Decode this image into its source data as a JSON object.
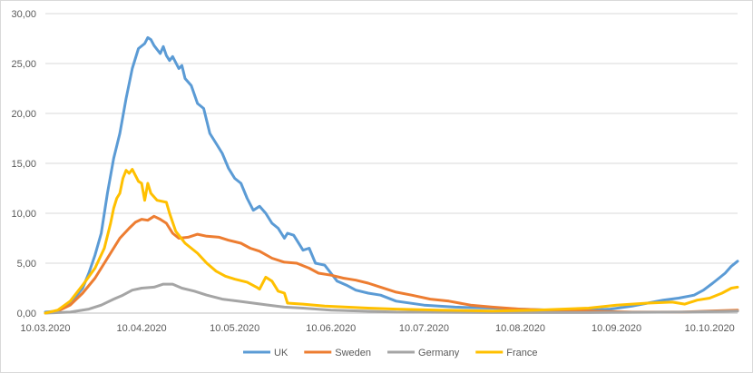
{
  "chart_data": {
    "type": "line",
    "title": "",
    "xlabel": "",
    "ylabel": "",
    "ylim": [
      0,
      30
    ],
    "yticks": [
      "0,00",
      "5,00",
      "10,00",
      "15,00",
      "20,00",
      "25,00",
      "30,00"
    ],
    "xticks": [
      "10.03.2020",
      "10.04.2020",
      "10.05.2020",
      "10.06.2020",
      "10.07.2020",
      "10.08.2020",
      "10.09.2020",
      "10.10.2020"
    ],
    "x_range": [
      "2020-03-10",
      "2020-10-19"
    ],
    "grid": "horizontal",
    "legend_position": "bottom",
    "series": [
      {
        "name": "UK",
        "color": "#5b9bd5",
        "points": [
          [
            "2020-03-10",
            0.1
          ],
          [
            "2020-03-14",
            0.2
          ],
          [
            "2020-03-18",
            1.0
          ],
          [
            "2020-03-22",
            2.5
          ],
          [
            "2020-03-24",
            4.0
          ],
          [
            "2020-03-26",
            5.8
          ],
          [
            "2020-03-28",
            8.0
          ],
          [
            "2020-03-30",
            12.0
          ],
          [
            "2020-04-01",
            15.5
          ],
          [
            "2020-04-03",
            18.0
          ],
          [
            "2020-04-05",
            21.5
          ],
          [
            "2020-04-07",
            24.5
          ],
          [
            "2020-04-09",
            26.5
          ],
          [
            "2020-04-11",
            27.0
          ],
          [
            "2020-04-12",
            27.6
          ],
          [
            "2020-04-13",
            27.4
          ],
          [
            "2020-04-14",
            26.8
          ],
          [
            "2020-04-16",
            26.0
          ],
          [
            "2020-04-17",
            26.7
          ],
          [
            "2020-04-18",
            25.8
          ],
          [
            "2020-04-19",
            25.3
          ],
          [
            "2020-04-20",
            25.7
          ],
          [
            "2020-04-22",
            24.5
          ],
          [
            "2020-04-23",
            24.8
          ],
          [
            "2020-04-24",
            23.5
          ],
          [
            "2020-04-26",
            22.8
          ],
          [
            "2020-04-28",
            21.0
          ],
          [
            "2020-04-30",
            20.5
          ],
          [
            "2020-05-02",
            18.0
          ],
          [
            "2020-05-04",
            17.0
          ],
          [
            "2020-05-06",
            16.0
          ],
          [
            "2020-05-08",
            14.5
          ],
          [
            "2020-05-10",
            13.5
          ],
          [
            "2020-05-12",
            13.0
          ],
          [
            "2020-05-14",
            11.5
          ],
          [
            "2020-05-16",
            10.3
          ],
          [
            "2020-05-18",
            10.7
          ],
          [
            "2020-05-20",
            10.0
          ],
          [
            "2020-05-22",
            9.0
          ],
          [
            "2020-05-24",
            8.5
          ],
          [
            "2020-05-26",
            7.5
          ],
          [
            "2020-05-27",
            8.0
          ],
          [
            "2020-05-29",
            7.8
          ],
          [
            "2020-05-31",
            6.8
          ],
          [
            "2020-06-01",
            6.3
          ],
          [
            "2020-06-03",
            6.5
          ],
          [
            "2020-06-05",
            5.0
          ],
          [
            "2020-06-08",
            4.8
          ],
          [
            "2020-06-10",
            4.0
          ],
          [
            "2020-06-12",
            3.2
          ],
          [
            "2020-06-15",
            2.8
          ],
          [
            "2020-06-18",
            2.3
          ],
          [
            "2020-06-22",
            2.0
          ],
          [
            "2020-06-26",
            1.8
          ],
          [
            "2020-07-01",
            1.2
          ],
          [
            "2020-07-10",
            0.8
          ],
          [
            "2020-07-20",
            0.6
          ],
          [
            "2020-08-01",
            0.5
          ],
          [
            "2020-08-10",
            0.4
          ],
          [
            "2020-08-20",
            0.3
          ],
          [
            "2020-09-01",
            0.3
          ],
          [
            "2020-09-08",
            0.4
          ],
          [
            "2020-09-15",
            0.7
          ],
          [
            "2020-09-20",
            1.0
          ],
          [
            "2020-09-25",
            1.3
          ],
          [
            "2020-09-30",
            1.5
          ],
          [
            "2020-10-05",
            1.8
          ],
          [
            "2020-10-08",
            2.3
          ],
          [
            "2020-10-11",
            3.0
          ],
          [
            "2020-10-13",
            3.5
          ],
          [
            "2020-10-15",
            4.0
          ],
          [
            "2020-10-17",
            4.7
          ],
          [
            "2020-10-19",
            5.2
          ]
        ]
      },
      {
        "name": "Sweden",
        "color": "#ed7d31",
        "points": [
          [
            "2020-03-10",
            0.0
          ],
          [
            "2020-03-14",
            0.2
          ],
          [
            "2020-03-18",
            0.8
          ],
          [
            "2020-03-22",
            2.0
          ],
          [
            "2020-03-26",
            3.5
          ],
          [
            "2020-03-30",
            5.5
          ],
          [
            "2020-04-03",
            7.5
          ],
          [
            "2020-04-06",
            8.5
          ],
          [
            "2020-04-08",
            9.1
          ],
          [
            "2020-04-10",
            9.4
          ],
          [
            "2020-04-12",
            9.3
          ],
          [
            "2020-04-14",
            9.7
          ],
          [
            "2020-04-16",
            9.4
          ],
          [
            "2020-04-18",
            9.0
          ],
          [
            "2020-04-20",
            8.0
          ],
          [
            "2020-04-22",
            7.5
          ],
          [
            "2020-04-25",
            7.6
          ],
          [
            "2020-04-28",
            7.9
          ],
          [
            "2020-05-01",
            7.7
          ],
          [
            "2020-05-05",
            7.6
          ],
          [
            "2020-05-08",
            7.3
          ],
          [
            "2020-05-12",
            7.0
          ],
          [
            "2020-05-15",
            6.5
          ],
          [
            "2020-05-18",
            6.2
          ],
          [
            "2020-05-22",
            5.5
          ],
          [
            "2020-05-26",
            5.1
          ],
          [
            "2020-05-30",
            5.0
          ],
          [
            "2020-06-03",
            4.5
          ],
          [
            "2020-06-06",
            4.0
          ],
          [
            "2020-06-10",
            3.8
          ],
          [
            "2020-06-14",
            3.5
          ],
          [
            "2020-06-18",
            3.3
          ],
          [
            "2020-06-22",
            3.0
          ],
          [
            "2020-06-26",
            2.6
          ],
          [
            "2020-07-01",
            2.1
          ],
          [
            "2020-07-06",
            1.8
          ],
          [
            "2020-07-12",
            1.4
          ],
          [
            "2020-07-18",
            1.2
          ],
          [
            "2020-07-25",
            0.8
          ],
          [
            "2020-08-01",
            0.6
          ],
          [
            "2020-08-10",
            0.4
          ],
          [
            "2020-08-20",
            0.3
          ],
          [
            "2020-09-01",
            0.2
          ],
          [
            "2020-09-15",
            0.1
          ],
          [
            "2020-10-01",
            0.1
          ],
          [
            "2020-10-10",
            0.2
          ],
          [
            "2020-10-19",
            0.3
          ]
        ]
      },
      {
        "name": "Germany",
        "color": "#a5a5a5",
        "points": [
          [
            "2020-03-10",
            0.0
          ],
          [
            "2020-03-18",
            0.1
          ],
          [
            "2020-03-24",
            0.4
          ],
          [
            "2020-03-28",
            0.8
          ],
          [
            "2020-04-01",
            1.4
          ],
          [
            "2020-04-04",
            1.8
          ],
          [
            "2020-04-07",
            2.3
          ],
          [
            "2020-04-10",
            2.5
          ],
          [
            "2020-04-14",
            2.6
          ],
          [
            "2020-04-17",
            2.9
          ],
          [
            "2020-04-20",
            2.9
          ],
          [
            "2020-04-23",
            2.5
          ],
          [
            "2020-04-27",
            2.2
          ],
          [
            "2020-05-01",
            1.8
          ],
          [
            "2020-05-06",
            1.4
          ],
          [
            "2020-05-11",
            1.2
          ],
          [
            "2020-05-16",
            1.0
          ],
          [
            "2020-05-21",
            0.8
          ],
          [
            "2020-05-26",
            0.6
          ],
          [
            "2020-06-01",
            0.5
          ],
          [
            "2020-06-10",
            0.3
          ],
          [
            "2020-06-20",
            0.2
          ],
          [
            "2020-07-01",
            0.1
          ],
          [
            "2020-08-01",
            0.05
          ],
          [
            "2020-09-01",
            0.05
          ],
          [
            "2020-10-01",
            0.1
          ],
          [
            "2020-10-19",
            0.2
          ]
        ]
      },
      {
        "name": "France",
        "color": "#ffc000",
        "points": [
          [
            "2020-03-10",
            0.0
          ],
          [
            "2020-03-14",
            0.3
          ],
          [
            "2020-03-18",
            1.2
          ],
          [
            "2020-03-22",
            2.8
          ],
          [
            "2020-03-26",
            4.5
          ],
          [
            "2020-03-29",
            6.5
          ],
          [
            "2020-03-31",
            9.0
          ],
          [
            "2020-04-01",
            10.5
          ],
          [
            "2020-04-02",
            11.5
          ],
          [
            "2020-04-03",
            12.0
          ],
          [
            "2020-04-04",
            13.5
          ],
          [
            "2020-04-05",
            14.3
          ],
          [
            "2020-04-06",
            14.0
          ],
          [
            "2020-04-07",
            14.4
          ],
          [
            "2020-04-09",
            13.2
          ],
          [
            "2020-04-10",
            13.0
          ],
          [
            "2020-04-11",
            11.3
          ],
          [
            "2020-04-12",
            13.0
          ],
          [
            "2020-04-13",
            12.0
          ],
          [
            "2020-04-15",
            11.3
          ],
          [
            "2020-04-18",
            11.1
          ],
          [
            "2020-04-19",
            10.0
          ],
          [
            "2020-04-21",
            8.2
          ],
          [
            "2020-04-24",
            7.0
          ],
          [
            "2020-04-28",
            6.0
          ],
          [
            "2020-05-01",
            5.0
          ],
          [
            "2020-05-04",
            4.2
          ],
          [
            "2020-05-07",
            3.7
          ],
          [
            "2020-05-10",
            3.4
          ],
          [
            "2020-05-14",
            3.1
          ],
          [
            "2020-05-17",
            2.6
          ],
          [
            "2020-05-18",
            2.4
          ],
          [
            "2020-05-20",
            3.6
          ],
          [
            "2020-05-22",
            3.2
          ],
          [
            "2020-05-24",
            2.2
          ],
          [
            "2020-05-26",
            2.0
          ],
          [
            "2020-05-27",
            1.0
          ],
          [
            "2020-06-01",
            0.9
          ],
          [
            "2020-06-08",
            0.7
          ],
          [
            "2020-06-15",
            0.6
          ],
          [
            "2020-06-22",
            0.5
          ],
          [
            "2020-07-01",
            0.4
          ],
          [
            "2020-07-15",
            0.3
          ],
          [
            "2020-08-01",
            0.2
          ],
          [
            "2020-08-15",
            0.3
          ],
          [
            "2020-09-01",
            0.5
          ],
          [
            "2020-09-10",
            0.8
          ],
          [
            "2020-09-20",
            1.0
          ],
          [
            "2020-09-28",
            1.1
          ],
          [
            "2020-10-02",
            0.9
          ],
          [
            "2020-10-06",
            1.3
          ],
          [
            "2020-10-10",
            1.5
          ],
          [
            "2020-10-14",
            2.0
          ],
          [
            "2020-10-17",
            2.5
          ],
          [
            "2020-10-19",
            2.6
          ]
        ]
      }
    ]
  }
}
